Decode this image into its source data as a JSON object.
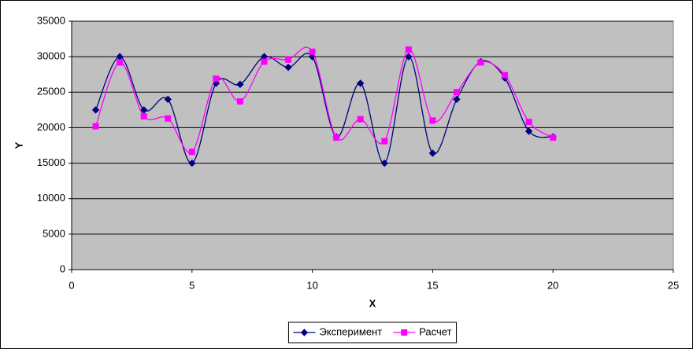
{
  "chart_data": {
    "type": "scatter-smooth",
    "x_label": "X",
    "y_label": "Y",
    "x": [
      1,
      2,
      3,
      4,
      5,
      6,
      7,
      8,
      9,
      10,
      11,
      12,
      13,
      14,
      15,
      16,
      17,
      18,
      19,
      20
    ],
    "series": [
      {
        "name": "Эксперимент",
        "color": "#000080",
        "marker": "diamond",
        "values": [
          22500,
          30000,
          22500,
          24000,
          15000,
          26250,
          26100,
          30000,
          28500,
          30000,
          18700,
          26250,
          15000,
          30000,
          16400,
          24000,
          29300,
          27000,
          19500,
          18700
        ]
      },
      {
        "name": "Расчет",
        "color": "#ff00ff",
        "marker": "square",
        "values": [
          20200,
          29200,
          21600,
          21300,
          16600,
          26900,
          23700,
          29300,
          29600,
          30700,
          18600,
          21200,
          18100,
          31000,
          21000,
          25000,
          29200,
          27400,
          20800,
          18600
        ]
      }
    ],
    "xlim": [
      0,
      25
    ],
    "xticks": [
      0,
      5,
      10,
      15,
      20,
      25
    ],
    "ylim": [
      0,
      35000
    ],
    "yticks": [
      0,
      5000,
      10000,
      15000,
      20000,
      25000,
      30000,
      35000
    ],
    "grid": true,
    "legend": "bottom"
  }
}
